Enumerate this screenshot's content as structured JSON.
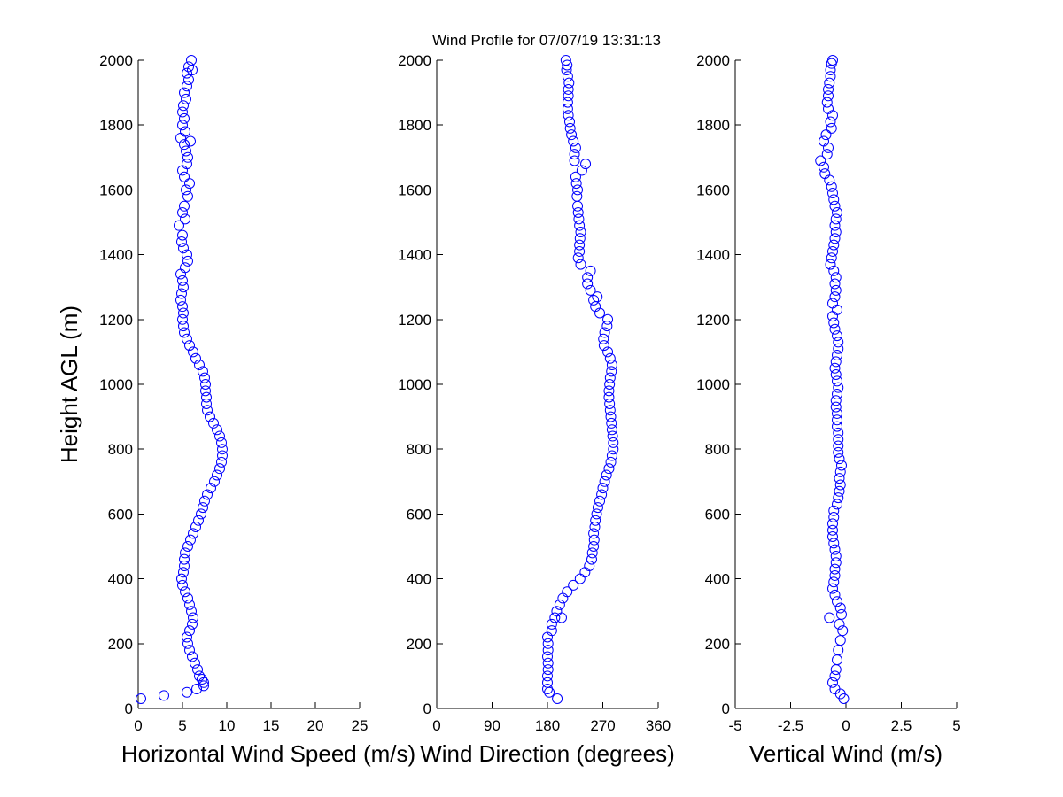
{
  "figure": {
    "title": "Wind Profile for  07/07/19 13:31:13"
  },
  "colors": {
    "marker": "#0000ff",
    "axes": "#000000",
    "background": "#ffffff"
  },
  "chart_data": [
    {
      "type": "scatter",
      "marker": "open-circle",
      "xlabel": "Horizontal Wind Speed (m/s)",
      "ylabel": "Height AGL (m)",
      "xlim": [
        0,
        25
      ],
      "ylim": [
        0,
        2000
      ],
      "xticks": [
        0,
        5,
        10,
        15,
        20,
        25
      ],
      "xtick_labels": [
        "0",
        "5",
        "10",
        "15",
        "20",
        "25"
      ],
      "yticks": [
        0,
        200,
        400,
        600,
        800,
        1000,
        1200,
        1400,
        1600,
        1800,
        2000
      ],
      "ytick_labels": [
        "0",
        "200",
        "400",
        "600",
        "800",
        "1000",
        "1200",
        "1400",
        "1600",
        "1800",
        "2000"
      ],
      "grid": false,
      "profile": [
        [
          0.3,
          30
        ],
        [
          2.9,
          40
        ],
        [
          5.5,
          50
        ],
        [
          6.6,
          60
        ],
        [
          7.4,
          70
        ],
        [
          7.4,
          80
        ],
        [
          7.2,
          90
        ],
        [
          6.9,
          100
        ],
        [
          6.7,
          120
        ],
        [
          6.4,
          140
        ],
        [
          6.1,
          160
        ],
        [
          5.8,
          180
        ],
        [
          5.6,
          200
        ],
        [
          5.5,
          220
        ],
        [
          5.8,
          240
        ],
        [
          6.1,
          260
        ],
        [
          6.2,
          280
        ],
        [
          6.0,
          300
        ],
        [
          5.8,
          320
        ],
        [
          5.6,
          340
        ],
        [
          5.3,
          360
        ],
        [
          5.0,
          380
        ],
        [
          4.9,
          400
        ],
        [
          5.1,
          420
        ],
        [
          5.2,
          440
        ],
        [
          5.2,
          460
        ],
        [
          5.3,
          480
        ],
        [
          5.6,
          500
        ],
        [
          5.9,
          520
        ],
        [
          6.2,
          540
        ],
        [
          6.5,
          560
        ],
        [
          6.8,
          580
        ],
        [
          7.1,
          600
        ],
        [
          7.3,
          620
        ],
        [
          7.5,
          640
        ],
        [
          7.8,
          660
        ],
        [
          8.2,
          680
        ],
        [
          8.6,
          700
        ],
        [
          8.9,
          720
        ],
        [
          9.2,
          740
        ],
        [
          9.4,
          760
        ],
        [
          9.5,
          780
        ],
        [
          9.5,
          800
        ],
        [
          9.4,
          820
        ],
        [
          9.2,
          840
        ],
        [
          8.9,
          860
        ],
        [
          8.5,
          880
        ],
        [
          8.1,
          900
        ],
        [
          7.8,
          920
        ],
        [
          7.7,
          940
        ],
        [
          7.7,
          960
        ],
        [
          7.6,
          980
        ],
        [
          7.6,
          1000
        ],
        [
          7.5,
          1020
        ],
        [
          7.3,
          1040
        ],
        [
          6.9,
          1060
        ],
        [
          6.5,
          1080
        ],
        [
          6.2,
          1100
        ],
        [
          5.8,
          1120
        ],
        [
          5.5,
          1140
        ],
        [
          5.2,
          1160
        ],
        [
          5.1,
          1180
        ],
        [
          5.0,
          1200
        ],
        [
          5.1,
          1220
        ],
        [
          5.0,
          1240
        ],
        [
          4.8,
          1260
        ],
        [
          4.9,
          1280
        ],
        [
          5.1,
          1300
        ],
        [
          5.0,
          1320
        ],
        [
          4.8,
          1340
        ],
        [
          5.3,
          1360
        ],
        [
          5.6,
          1380
        ],
        [
          5.5,
          1400
        ],
        [
          5.1,
          1420
        ],
        [
          4.9,
          1440
        ],
        [
          5.0,
          1460
        ],
        [
          4.6,
          1490
        ],
        [
          5.3,
          1510
        ],
        [
          5.0,
          1530
        ],
        [
          5.2,
          1550
        ],
        [
          5.6,
          1580
        ],
        [
          5.4,
          1600
        ],
        [
          5.8,
          1620
        ],
        [
          5.2,
          1640
        ],
        [
          5.0,
          1660
        ],
        [
          5.5,
          1680
        ],
        [
          5.6,
          1700
        ],
        [
          5.4,
          1720
        ],
        [
          5.2,
          1740
        ],
        [
          5.9,
          1750
        ],
        [
          4.8,
          1760
        ],
        [
          5.3,
          1780
        ],
        [
          5.0,
          1800
        ],
        [
          5.2,
          1820
        ],
        [
          5.0,
          1840
        ],
        [
          5.1,
          1860
        ],
        [
          5.4,
          1880
        ],
        [
          5.2,
          1900
        ],
        [
          5.5,
          1920
        ],
        [
          5.7,
          1940
        ],
        [
          5.5,
          1960
        ],
        [
          6.1,
          1970
        ],
        [
          5.7,
          1980
        ],
        [
          6.0,
          2000
        ]
      ]
    },
    {
      "type": "scatter",
      "marker": "open-circle",
      "xlabel": "Wind Direction (degrees)",
      "ylabel": "",
      "xlim": [
        0,
        360
      ],
      "ylim": [
        0,
        2000
      ],
      "xticks": [
        0,
        90,
        180,
        270,
        360
      ],
      "xtick_labels": [
        "0",
        "90",
        "180",
        "270",
        "360"
      ],
      "yticks": [
        0,
        200,
        400,
        600,
        800,
        1000,
        1200,
        1400,
        1600,
        1800,
        2000
      ],
      "ytick_labels": [
        "0",
        "200",
        "400",
        "600",
        "800",
        "1000",
        "1200",
        "1400",
        "1600",
        "1800",
        "2000"
      ],
      "grid": false,
      "profile": [
        [
          196,
          30
        ],
        [
          183,
          50
        ],
        [
          180,
          60
        ],
        [
          180,
          80
        ],
        [
          180,
          100
        ],
        [
          181,
          120
        ],
        [
          181,
          140
        ],
        [
          180,
          160
        ],
        [
          181,
          180
        ],
        [
          181,
          200
        ],
        [
          180,
          220
        ],
        [
          187,
          240
        ],
        [
          187,
          260
        ],
        [
          192,
          280
        ],
        [
          203,
          280
        ],
        [
          195,
          300
        ],
        [
          200,
          320
        ],
        [
          205,
          340
        ],
        [
          212,
          360
        ],
        [
          222,
          380
        ],
        [
          233,
          400
        ],
        [
          241,
          420
        ],
        [
          248,
          440
        ],
        [
          252,
          460
        ],
        [
          253,
          480
        ],
        [
          255,
          500
        ],
        [
          256,
          520
        ],
        [
          255,
          540
        ],
        [
          257,
          560
        ],
        [
          258,
          580
        ],
        [
          260,
          600
        ],
        [
          262,
          620
        ],
        [
          265,
          640
        ],
        [
          268,
          660
        ],
        [
          270,
          680
        ],
        [
          273,
          700
        ],
        [
          276,
          720
        ],
        [
          280,
          740
        ],
        [
          283,
          760
        ],
        [
          285,
          780
        ],
        [
          287,
          800
        ],
        [
          287,
          820
        ],
        [
          286,
          840
        ],
        [
          285,
          860
        ],
        [
          284,
          880
        ],
        [
          283,
          900
        ],
        [
          282,
          920
        ],
        [
          281,
          940
        ],
        [
          280,
          960
        ],
        [
          280,
          980
        ],
        [
          281,
          1000
        ],
        [
          282,
          1020
        ],
        [
          284,
          1040
        ],
        [
          285,
          1060
        ],
        [
          282,
          1080
        ],
        [
          278,
          1100
        ],
        [
          272,
          1120
        ],
        [
          271,
          1140
        ],
        [
          273,
          1160
        ],
        [
          277,
          1180
        ],
        [
          278,
          1200
        ],
        [
          265,
          1220
        ],
        [
          258,
          1240
        ],
        [
          255,
          1260
        ],
        [
          261,
          1270
        ],
        [
          250,
          1290
        ],
        [
          245,
          1310
        ],
        [
          245,
          1330
        ],
        [
          250,
          1350
        ],
        [
          234,
          1370
        ],
        [
          230,
          1390
        ],
        [
          232,
          1410
        ],
        [
          232,
          1430
        ],
        [
          233,
          1450
        ],
        [
          234,
          1470
        ],
        [
          232,
          1490
        ],
        [
          231,
          1510
        ],
        [
          230,
          1530
        ],
        [
          229,
          1550
        ],
        [
          228,
          1580
        ],
        [
          229,
          1600
        ],
        [
          227,
          1620
        ],
        [
          226,
          1640
        ],
        [
          236,
          1660
        ],
        [
          242,
          1680
        ],
        [
          224,
          1690
        ],
        [
          224,
          1710
        ],
        [
          226,
          1730
        ],
        [
          222,
          1750
        ],
        [
          219,
          1770
        ],
        [
          217,
          1790
        ],
        [
          216,
          1810
        ],
        [
          214,
          1830
        ],
        [
          213,
          1850
        ],
        [
          213,
          1870
        ],
        [
          214,
          1890
        ],
        [
          214,
          1910
        ],
        [
          215,
          1930
        ],
        [
          213,
          1950
        ],
        [
          211,
          1970
        ],
        [
          212,
          1985
        ],
        [
          210,
          2000
        ]
      ]
    },
    {
      "type": "scatter",
      "marker": "open-circle",
      "xlabel": "Vertical Wind (m/s)",
      "ylabel": "",
      "xlim": [
        -5,
        5
      ],
      "ylim": [
        0,
        2000
      ],
      "xticks": [
        -5,
        -2.5,
        0,
        2.5,
        5
      ],
      "xtick_labels": [
        "-5",
        "-2.5",
        "0",
        "2.5",
        "5"
      ],
      "yticks": [
        0,
        200,
        400,
        600,
        800,
        1000,
        1200,
        1400,
        1600,
        1800,
        2000
      ],
      "ytick_labels": [
        "0",
        "200",
        "400",
        "600",
        "800",
        "1000",
        "1200",
        "1400",
        "1600",
        "1800",
        "2000"
      ],
      "grid": false,
      "profile": [
        [
          -0.1,
          30
        ],
        [
          -0.25,
          45
        ],
        [
          -0.5,
          60
        ],
        [
          -0.6,
          80
        ],
        [
          -0.5,
          100
        ],
        [
          -0.45,
          120
        ],
        [
          -0.4,
          150
        ],
        [
          -0.35,
          180
        ],
        [
          -0.25,
          210
        ],
        [
          -0.15,
          240
        ],
        [
          -0.3,
          260
        ],
        [
          -0.2,
          290
        ],
        [
          -0.25,
          310
        ],
        [
          -0.75,
          280
        ],
        [
          -0.4,
          330
        ],
        [
          -0.5,
          350
        ],
        [
          -0.6,
          370
        ],
        [
          -0.55,
          390
        ],
        [
          -0.5,
          410
        ],
        [
          -0.5,
          430
        ],
        [
          -0.45,
          450
        ],
        [
          -0.45,
          470
        ],
        [
          -0.5,
          490
        ],
        [
          -0.55,
          510
        ],
        [
          -0.6,
          530
        ],
        [
          -0.6,
          550
        ],
        [
          -0.6,
          570
        ],
        [
          -0.55,
          590
        ],
        [
          -0.55,
          610
        ],
        [
          -0.4,
          630
        ],
        [
          -0.35,
          650
        ],
        [
          -0.3,
          670
        ],
        [
          -0.25,
          690
        ],
        [
          -0.3,
          710
        ],
        [
          -0.25,
          730
        ],
        [
          -0.2,
          750
        ],
        [
          -0.3,
          770
        ],
        [
          -0.35,
          790
        ],
        [
          -0.35,
          810
        ],
        [
          -0.35,
          830
        ],
        [
          -0.35,
          850
        ],
        [
          -0.4,
          870
        ],
        [
          -0.4,
          890
        ],
        [
          -0.4,
          910
        ],
        [
          -0.45,
          930
        ],
        [
          -0.45,
          950
        ],
        [
          -0.4,
          970
        ],
        [
          -0.35,
          990
        ],
        [
          -0.4,
          1010
        ],
        [
          -0.45,
          1030
        ],
        [
          -0.5,
          1050
        ],
        [
          -0.45,
          1070
        ],
        [
          -0.4,
          1090
        ],
        [
          -0.35,
          1110
        ],
        [
          -0.35,
          1130
        ],
        [
          -0.4,
          1150
        ],
        [
          -0.5,
          1170
        ],
        [
          -0.55,
          1190
        ],
        [
          -0.6,
          1210
        ],
        [
          -0.4,
          1230
        ],
        [
          -0.6,
          1250
        ],
        [
          -0.5,
          1270
        ],
        [
          -0.45,
          1290
        ],
        [
          -0.5,
          1310
        ],
        [
          -0.45,
          1330
        ],
        [
          -0.55,
          1350
        ],
        [
          -0.7,
          1370
        ],
        [
          -0.65,
          1390
        ],
        [
          -0.6,
          1410
        ],
        [
          -0.55,
          1430
        ],
        [
          -0.5,
          1450
        ],
        [
          -0.45,
          1470
        ],
        [
          -0.5,
          1490
        ],
        [
          -0.45,
          1510
        ],
        [
          -0.4,
          1530
        ],
        [
          -0.5,
          1550
        ],
        [
          -0.55,
          1570
        ],
        [
          -0.6,
          1590
        ],
        [
          -0.65,
          1610
        ],
        [
          -0.75,
          1630
        ],
        [
          -0.95,
          1650
        ],
        [
          -1.0,
          1670
        ],
        [
          -1.15,
          1690
        ],
        [
          -0.85,
          1710
        ],
        [
          -0.8,
          1730
        ],
        [
          -1.0,
          1750
        ],
        [
          -0.9,
          1770
        ],
        [
          -0.65,
          1790
        ],
        [
          -0.7,
          1810
        ],
        [
          -0.6,
          1830
        ],
        [
          -0.8,
          1850
        ],
        [
          -0.85,
          1870
        ],
        [
          -0.8,
          1890
        ],
        [
          -0.8,
          1910
        ],
        [
          -0.75,
          1930
        ],
        [
          -0.7,
          1950
        ],
        [
          -0.7,
          1970
        ],
        [
          -0.65,
          1990
        ],
        [
          -0.6,
          2000
        ]
      ]
    }
  ]
}
